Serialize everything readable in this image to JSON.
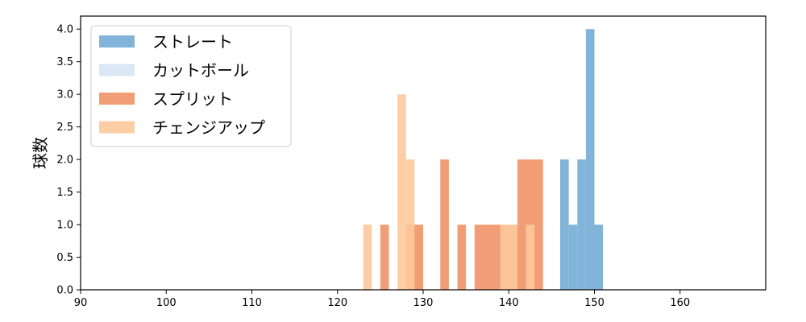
{
  "chart_data": {
    "type": "histogram",
    "title": "",
    "xlabel": "",
    "ylabel": "球数",
    "xlim": [
      90,
      170
    ],
    "ylim": [
      0,
      4.2
    ],
    "xticks": [
      90,
      100,
      110,
      120,
      130,
      140,
      150,
      160
    ],
    "yticks": [
      0.0,
      0.5,
      1.0,
      1.5,
      2.0,
      2.5,
      3.0,
      3.5,
      4.0
    ],
    "grid": false,
    "legend": "top-left",
    "series": [
      {
        "name": "ストレート",
        "color": "#7bafd6",
        "opacity": 0.95,
        "bins": [
          {
            "x0": 146.0,
            "x1": 147.0,
            "count": 2
          },
          {
            "x0": 147.0,
            "x1": 148.0,
            "count": 1
          },
          {
            "x0": 148.0,
            "x1": 149.0,
            "count": 2
          },
          {
            "x0": 149.0,
            "x1": 150.0,
            "count": 4
          },
          {
            "x0": 150.0,
            "x1": 151.0,
            "count": 1
          }
        ]
      },
      {
        "name": "カットボール",
        "color": "#d8e6f3",
        "opacity": 0.95,
        "bins": []
      },
      {
        "name": "スプリット",
        "color": "#ee8c5d",
        "opacity": 0.85,
        "bins": [
          {
            "x0": 125.0,
            "x1": 126.0,
            "count": 1
          },
          {
            "x0": 128.0,
            "x1": 130.0,
            "count": 1
          },
          {
            "x0": 132.0,
            "x1": 133.0,
            "count": 2
          },
          {
            "x0": 134.0,
            "x1": 135.0,
            "count": 1
          },
          {
            "x0": 136.0,
            "x1": 141.0,
            "count": 1
          },
          {
            "x0": 141.0,
            "x1": 144.0,
            "count": 2
          }
        ]
      },
      {
        "name": "チェンジアップ",
        "color": "#fdc99b",
        "opacity": 0.9,
        "bins": [
          {
            "x0": 123.0,
            "x1": 124.0,
            "count": 1
          },
          {
            "x0": 127.0,
            "x1": 128.0,
            "count": 3
          },
          {
            "x0": 128.0,
            "x1": 129.0,
            "count": 2
          },
          {
            "x0": 139.0,
            "x1": 141.0,
            "count": 1
          },
          {
            "x0": 142.0,
            "x1": 143.0,
            "count": 1
          }
        ]
      }
    ]
  }
}
